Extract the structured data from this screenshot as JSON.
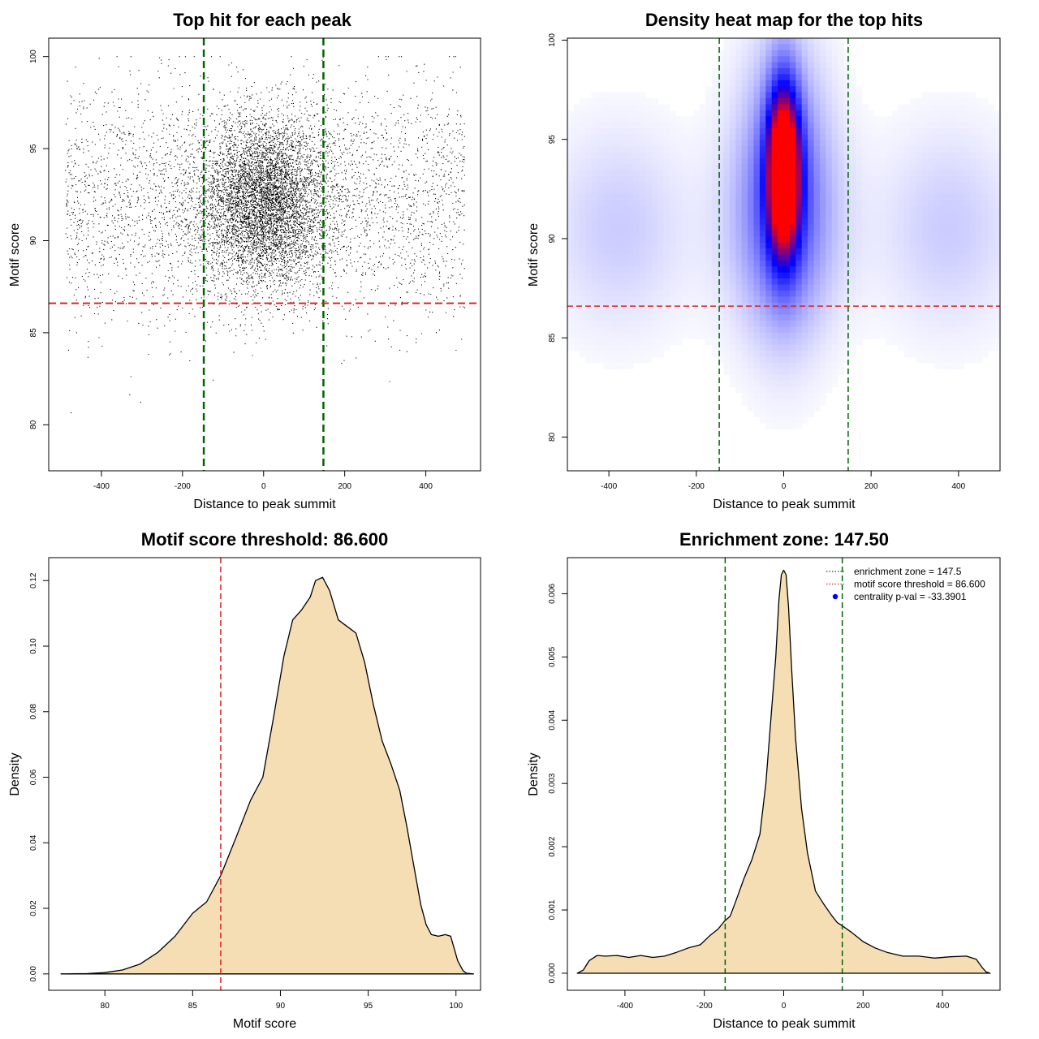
{
  "colors": {
    "points": "#000000",
    "threshold_line": "#dd2222",
    "zone_line": "#006400",
    "fill": "#f5deb3",
    "heat_low": "#ffffff",
    "heat_mid": "#0000ff",
    "heat_high": "#ff0000",
    "legend_dot": "#0000ff"
  },
  "chart_data": [
    {
      "type": "scatter",
      "title": "Top hit for each peak",
      "xlabel": "Distance to peak summit",
      "ylabel": "Motif score",
      "xlim": [
        -530,
        535
      ],
      "ylim": [
        77.5,
        101
      ],
      "xticks": [
        -400,
        -200,
        0,
        200,
        400
      ],
      "yticks": [
        80,
        85,
        90,
        95,
        100
      ],
      "vlines": [
        -147.5,
        147.5
      ],
      "hline": 86.6,
      "point_distribution": {
        "x_range": [
          -490,
          495
        ],
        "score_mean": 92.2,
        "center_spread": 80,
        "note_free_points": 9000
      }
    },
    {
      "type": "heatmap",
      "title": "Density heat map for the top hits",
      "xlabel": "Distance to peak summit",
      "ylabel": "Motif score",
      "xlim": [
        -495,
        495
      ],
      "ylim": [
        78.3,
        100.1
      ],
      "xticks": [
        -400,
        -200,
        0,
        200,
        400
      ],
      "yticks": [
        80,
        85,
        90,
        95,
        100
      ],
      "vlines": [
        -147.5,
        147.5
      ],
      "hline": 86.6,
      "peak": {
        "x": 0,
        "y": 93.5
      }
    },
    {
      "type": "area",
      "title": "Motif score threshold: 86.600",
      "xlabel": "Motif score",
      "ylabel": "Density",
      "xlim": [
        76.8,
        101.4
      ],
      "ylim": [
        -0.005,
        0.127
      ],
      "xticks": [
        80,
        85,
        90,
        95,
        100
      ],
      "yticks": [
        "0.00",
        "0.02",
        "0.04",
        "0.06",
        "0.08",
        "0.10",
        "0.12"
      ],
      "vline": 86.6,
      "x": [
        77.5,
        79,
        80,
        81,
        82,
        83,
        84,
        85,
        85.8,
        86.6,
        87.5,
        88.3,
        89,
        89.6,
        90.2,
        90.7,
        91.2,
        91.7,
        92,
        92.4,
        92.8,
        93.3,
        93.8,
        94.3,
        94.8,
        95.3,
        95.8,
        96.3,
        96.8,
        97.2,
        97.6,
        98,
        98.3,
        98.6,
        99,
        99.4,
        99.7,
        100.1,
        100.4,
        100.6,
        101
      ],
      "y": [
        0,
        0.0001,
        0.0004,
        0.0012,
        0.003,
        0.0065,
        0.0115,
        0.0185,
        0.022,
        0.03,
        0.042,
        0.053,
        0.06,
        0.078,
        0.097,
        0.108,
        0.111,
        0.115,
        0.12,
        0.121,
        0.117,
        0.108,
        0.106,
        0.104,
        0.095,
        0.082,
        0.071,
        0.064,
        0.056,
        0.045,
        0.033,
        0.021,
        0.015,
        0.012,
        0.0115,
        0.012,
        0.0115,
        0.004,
        0.001,
        0.0002,
        0
      ]
    },
    {
      "type": "area",
      "title": "Enrichment zone: 147.50",
      "xlabel": "Distance to peak summit",
      "ylabel": "Density",
      "xlim": [
        -545,
        545
      ],
      "ylim": [
        -0.00027,
        0.00657
      ],
      "xticks": [
        -400,
        -200,
        0,
        200,
        400
      ],
      "yticks": [
        "0.000",
        "0.001",
        "0.002",
        "0.003",
        "0.004",
        "0.005",
        "0.006"
      ],
      "vlines": [
        -147.5,
        147.5
      ],
      "x": [
        -520,
        -505,
        -490,
        -470,
        -450,
        -420,
        -390,
        -360,
        -330,
        -300,
        -270,
        -240,
        -210,
        -185,
        -165,
        -150,
        -135,
        -120,
        -100,
        -80,
        -60,
        -45,
        -30,
        -20,
        -12,
        -6,
        0,
        6,
        12,
        20,
        30,
        45,
        60,
        80,
        100,
        120,
        135,
        150,
        170,
        200,
        230,
        260,
        300,
        340,
        380,
        420,
        460,
        485,
        500,
        510,
        520
      ],
      "y": [
        0,
        5e-05,
        0.0002,
        0.00028,
        0.00027,
        0.00028,
        0.00025,
        0.00028,
        0.00025,
        0.00027,
        0.00033,
        0.0004,
        0.00045,
        0.0006,
        0.0007,
        0.00082,
        0.0009,
        0.00115,
        0.0015,
        0.0018,
        0.0022,
        0.003,
        0.0042,
        0.005,
        0.0059,
        0.0063,
        0.00637,
        0.0063,
        0.0058,
        0.0048,
        0.0037,
        0.0026,
        0.0019,
        0.0013,
        0.0011,
        0.00092,
        0.0008,
        0.00074,
        0.00065,
        0.0005,
        0.0004,
        0.00033,
        0.00027,
        0.00027,
        0.00024,
        0.00026,
        0.00027,
        0.00022,
        9e-05,
        2e-05,
        0
      ],
      "legend": [
        {
          "label": "enrichment zone = 147.5",
          "style": "dotted-green"
        },
        {
          "label": "motif score threshold = 86.600",
          "style": "dotted-red"
        },
        {
          "label": "centrality p-val = -33.3901",
          "style": "blue-dot"
        }
      ]
    }
  ]
}
